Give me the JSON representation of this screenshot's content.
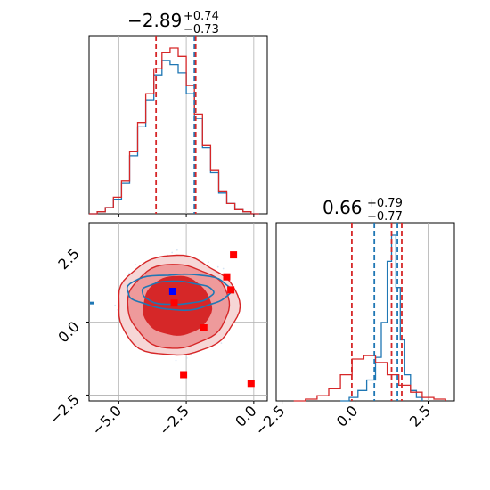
{
  "chart_data": [
    {
      "type": "histogram",
      "panel": "top-left",
      "title": "−2.89",
      "title_sup": "+0.74",
      "title_sub": "−0.73",
      "xlim": [
        -6.1,
        0.5
      ],
      "xticks": [
        -5.0,
        -2.5,
        0.0
      ],
      "grid": true,
      "quantile_lines": {
        "blue": [
          -2.2
        ],
        "red": [
          -3.62,
          -2.15
        ]
      },
      "series": [
        {
          "color": "#1f77b4",
          "x": [
            -6.1,
            -5.8,
            -5.5,
            -5.2,
            -4.9,
            -4.6,
            -4.3,
            -4.0,
            -3.7,
            -3.4,
            -3.1,
            -2.8,
            -2.5,
            -2.2,
            -1.9,
            -1.6,
            -1.3,
            -1.0,
            -0.7,
            -0.4,
            -0.1,
            0.2
          ],
          "values": [
            0.0,
            0.01,
            0.03,
            0.07,
            0.15,
            0.28,
            0.42,
            0.55,
            0.67,
            0.74,
            0.72,
            0.68,
            0.58,
            0.46,
            0.32,
            0.2,
            0.1,
            0.05,
            0.02,
            0.01,
            0.0,
            0.0
          ]
        },
        {
          "color": "#d62728",
          "x": [
            -6.1,
            -5.8,
            -5.5,
            -5.2,
            -4.9,
            -4.6,
            -4.3,
            -4.0,
            -3.7,
            -3.4,
            -3.1,
            -2.8,
            -2.5,
            -2.2,
            -1.9,
            -1.6,
            -1.3,
            -1.0,
            -0.7,
            -0.4,
            -0.1,
            0.2
          ],
          "values": [
            0.0,
            0.01,
            0.03,
            0.08,
            0.16,
            0.3,
            0.44,
            0.58,
            0.7,
            0.78,
            0.8,
            0.76,
            0.62,
            0.48,
            0.33,
            0.21,
            0.11,
            0.05,
            0.02,
            0.01,
            0.0,
            0.0
          ]
        }
      ]
    },
    {
      "type": "contour",
      "panel": "bottom-left",
      "xlim": [
        -6.1,
        0.5
      ],
      "ylim": [
        -2.7,
        3.4
      ],
      "xticks": [
        -5.0,
        -2.5,
        0.0
      ],
      "yticks": [
        -2.5,
        0.0,
        2.5
      ],
      "grid": true,
      "blue_point": [
        -3.0,
        1.05
      ],
      "red_points": [
        [
          -0.75,
          2.3
        ],
        [
          -1.0,
          1.55
        ],
        [
          -0.85,
          1.1
        ],
        [
          -2.95,
          0.65
        ],
        [
          -1.85,
          -0.2
        ],
        [
          -2.6,
          -1.8
        ],
        [
          -0.1,
          -2.1
        ]
      ]
    },
    {
      "type": "histogram",
      "panel": "bottom-right",
      "title": "0.66",
      "title_sup": "+0.79",
      "title_sub": "−0.77",
      "xlim": [
        -2.7,
        3.4
      ],
      "xticks": [
        -2.5,
        0.0,
        2.5
      ],
      "grid": true,
      "quantile_lines": {
        "blue": [
          0.66,
          1.45
        ],
        "red": [
          -0.11,
          1.25,
          1.6
        ]
      },
      "series": [
        {
          "color": "#1f77b4",
          "x": [
            -0.5,
            -0.2,
            0.1,
            0.4,
            0.7,
            0.9,
            1.1,
            1.25,
            1.4,
            1.55,
            1.7,
            1.9,
            2.1,
            2.3
          ],
          "values": [
            0.0,
            0.02,
            0.06,
            0.12,
            0.25,
            0.45,
            0.8,
            0.95,
            0.65,
            0.35,
            0.15,
            0.06,
            0.02,
            0.0
          ]
        },
        {
          "color": "#d62728",
          "x": [
            -2.1,
            -1.7,
            -1.3,
            -0.9,
            -0.5,
            -0.1,
            0.3,
            0.7,
            1.1,
            1.5,
            1.9,
            2.3,
            2.7,
            3.1
          ],
          "values": [
            0.0,
            0.01,
            0.03,
            0.07,
            0.15,
            0.24,
            0.26,
            0.22,
            0.15,
            0.09,
            0.05,
            0.02,
            0.01,
            0.0
          ]
        }
      ]
    }
  ]
}
